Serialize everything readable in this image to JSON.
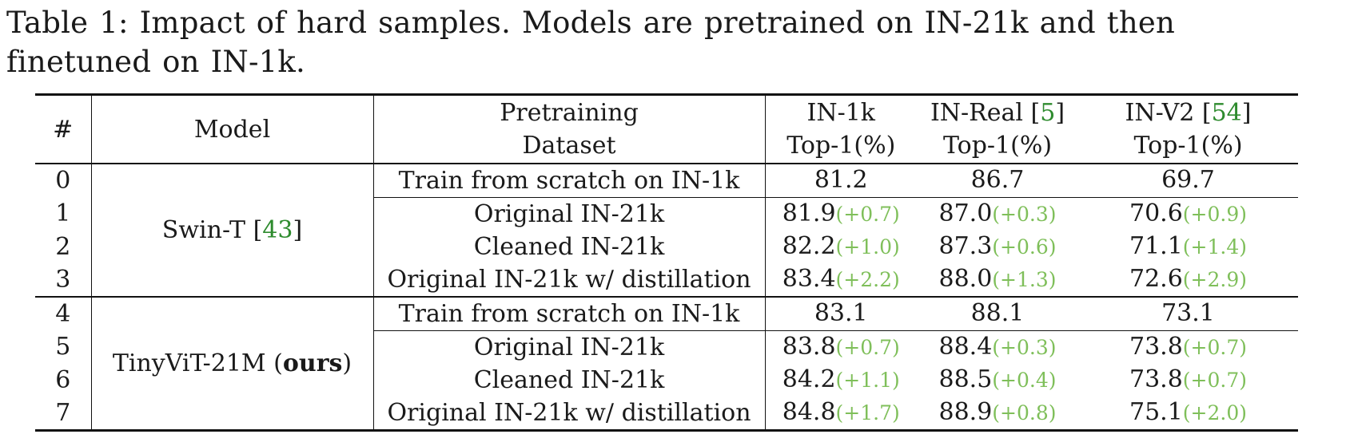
{
  "caption": {
    "line1": "Table 1: Impact of hard samples. Models are pretrained on IN-21k and then",
    "line2": "finetuned on IN-1k."
  },
  "header": {
    "num": "#",
    "model": "Model",
    "pretrain_l1": "Pretraining",
    "pretrain_l2": "Dataset",
    "in1k_l1": "IN-1k",
    "in1k_l2": "Top-1(%)",
    "inreal_l1": "IN-Real",
    "inreal_cite": "5",
    "inreal_l2": "Top-1(%)",
    "inv2_l1": "IN-V2",
    "inv2_cite": "54",
    "inv2_l2": "Top-1(%)"
  },
  "groups": [
    {
      "model": "Swin-T",
      "model_cite": "43",
      "rows": [
        {
          "num": "0",
          "dataset": "Train from scratch on IN-1k",
          "in1k": "81.2",
          "in1k_delta": "",
          "inreal": "86.7",
          "inreal_delta": "",
          "inv2": "69.7",
          "inv2_delta": ""
        },
        {
          "num": "1",
          "dataset": "Original IN-21k",
          "in1k": "81.9",
          "in1k_delta": "(+0.7)",
          "inreal": "87.0",
          "inreal_delta": "(+0.3)",
          "inv2": "70.6",
          "inv2_delta": "(+0.9)"
        },
        {
          "num": "2",
          "dataset": "Cleaned IN-21k",
          "in1k": "82.2",
          "in1k_delta": "(+1.0)",
          "inreal": "87.3",
          "inreal_delta": "(+0.6)",
          "inv2": "71.1",
          "inv2_delta": "(+1.4)"
        },
        {
          "num": "3",
          "dataset": "Original IN-21k w/ distillation",
          "in1k": "83.4",
          "in1k_delta": "(+2.2)",
          "inreal": "88.0",
          "inreal_delta": "(+1.3)",
          "inv2": "72.6",
          "inv2_delta": "(+2.9)"
        }
      ]
    },
    {
      "model": "TinyViT-21M",
      "model_suffix": "ours",
      "rows": [
        {
          "num": "4",
          "dataset": "Train from scratch on IN-1k",
          "in1k": "83.1",
          "in1k_delta": "",
          "inreal": "88.1",
          "inreal_delta": "",
          "inv2": "73.1",
          "inv2_delta": ""
        },
        {
          "num": "5",
          "dataset": "Original IN-21k",
          "in1k": "83.8",
          "in1k_delta": "(+0.7)",
          "inreal": "88.4",
          "inreal_delta": "(+0.3)",
          "inv2": "73.8",
          "inv2_delta": "(+0.7)"
        },
        {
          "num": "6",
          "dataset": "Cleaned IN-21k",
          "in1k": "84.2",
          "in1k_delta": "(+1.1)",
          "inreal": "88.5",
          "inreal_delta": "(+0.4)",
          "inv2": "73.8",
          "inv2_delta": "(+0.7)"
        },
        {
          "num": "7",
          "dataset": "Original IN-21k w/ distillation",
          "in1k": "84.8",
          "in1k_delta": "(+1.7)",
          "inreal": "88.9",
          "inreal_delta": "(+0.8)",
          "inv2": "75.1",
          "inv2_delta": "(+2.0)"
        }
      ]
    }
  ]
}
